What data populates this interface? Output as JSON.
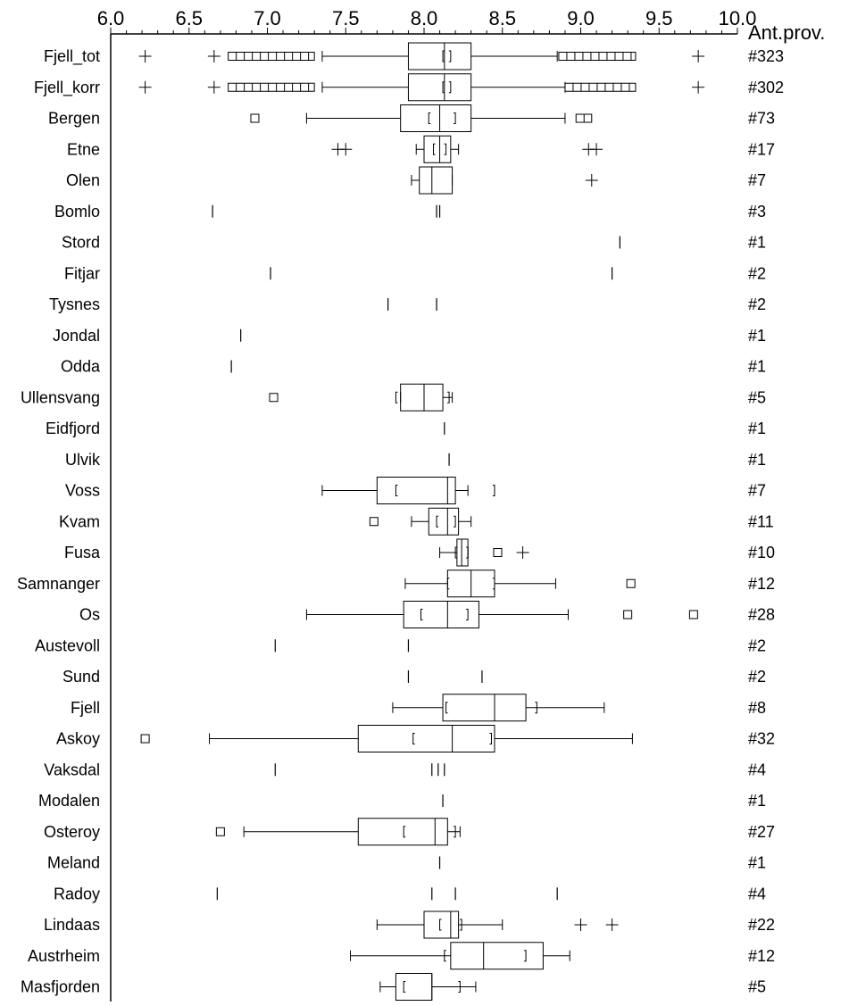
{
  "chart_data": {
    "type": "boxplot",
    "title": "",
    "xlabel": "",
    "ylabel": "",
    "xlim": [
      6.0,
      10.0
    ],
    "x_ticks": [
      "6.0",
      "6.5",
      "7.0",
      "7.5",
      "8.0",
      "8.5",
      "9.0",
      "9.5",
      "10.0"
    ],
    "count_header": "Ant.prov.",
    "rows": [
      {
        "label": "Fjell_tot",
        "count": "#323",
        "box": {
          "whisker_low": 7.35,
          "q1": 7.9,
          "median": 8.13,
          "q3": 8.3,
          "whisker_high": 8.85,
          "mean_ci": [
            8.12,
            8.17
          ]
        },
        "outliers": [
          {
            "x": 6.22,
            "kind": "plus"
          },
          {
            "x": 6.66,
            "kind": "plus"
          },
          {
            "x": 6.75,
            "kind": "run_square",
            "to": 7.3
          },
          {
            "x": 8.86,
            "kind": "run_square",
            "to": 9.35
          },
          {
            "x": 9.75,
            "kind": "plus"
          }
        ]
      },
      {
        "label": "Fjell_korr",
        "count": "#302",
        "box": {
          "whisker_low": 7.35,
          "q1": 7.9,
          "median": 8.13,
          "q3": 8.3,
          "whisker_high": 8.9,
          "mean_ci": [
            8.12,
            8.17
          ]
        },
        "outliers": [
          {
            "x": 6.22,
            "kind": "plus"
          },
          {
            "x": 6.66,
            "kind": "plus"
          },
          {
            "x": 6.75,
            "kind": "run_square",
            "to": 7.3
          },
          {
            "x": 8.9,
            "kind": "run_square",
            "to": 9.35
          },
          {
            "x": 9.75,
            "kind": "plus"
          }
        ]
      },
      {
        "label": "Bergen",
        "count": "#73",
        "box": {
          "whisker_low": 7.25,
          "q1": 7.85,
          "median": 8.1,
          "q3": 8.3,
          "whisker_high": 8.9,
          "mean_ci": [
            8.03,
            8.2
          ]
        },
        "outliers": [
          {
            "x": 6.92,
            "kind": "square"
          },
          {
            "x": 8.97,
            "kind": "run_square",
            "to": 9.07
          }
        ]
      },
      {
        "label": "Etne",
        "count": "#17",
        "box": {
          "whisker_low": 7.95,
          "q1": 8.0,
          "median": 8.1,
          "q3": 8.17,
          "whisker_high": 8.22,
          "mean_ci": [
            8.06,
            8.14
          ]
        },
        "outliers": [
          {
            "x": 7.45,
            "kind": "plus"
          },
          {
            "x": 7.5,
            "kind": "plus"
          },
          {
            "x": 9.05,
            "kind": "plus"
          },
          {
            "x": 9.1,
            "kind": "plus"
          }
        ]
      },
      {
        "label": "Olen",
        "count": "#7",
        "box": {
          "whisker_low": 7.92,
          "q1": 7.97,
          "median": 8.05,
          "q3": 8.18,
          "whisker_high": 8.18,
          "mean_ci": null
        },
        "outliers": [
          {
            "x": 9.07,
            "kind": "plus"
          }
        ]
      },
      {
        "label": "Bomlo",
        "count": "#3",
        "ticks": [
          6.65,
          8.08,
          8.1
        ]
      },
      {
        "label": "Stord",
        "count": "#1",
        "ticks": [
          9.25
        ]
      },
      {
        "label": "Fitjar",
        "count": "#2",
        "ticks": [
          7.02,
          9.2
        ]
      },
      {
        "label": "Tysnes",
        "count": "#2",
        "ticks": [
          7.77,
          8.08
        ]
      },
      {
        "label": "Jondal",
        "count": "#1",
        "ticks": [
          6.83
        ]
      },
      {
        "label": "Odda",
        "count": "#1",
        "ticks": [
          6.77
        ]
      },
      {
        "label": "Ullensvang",
        "count": "#5",
        "box": {
          "whisker_low": 7.85,
          "q1": 7.85,
          "median": 8.0,
          "q3": 8.12,
          "whisker_high": 8.18,
          "mean_ci": [
            7.82,
            8.16
          ]
        },
        "outliers": [
          {
            "x": 7.04,
            "kind": "square"
          }
        ]
      },
      {
        "label": "Eidfjord",
        "count": "#1",
        "ticks": [
          8.13
        ]
      },
      {
        "label": "Ulvik",
        "count": "#1",
        "ticks": [
          8.16
        ]
      },
      {
        "label": "Voss",
        "count": "#7",
        "box": {
          "whisker_low": 7.35,
          "q1": 7.7,
          "median": 8.15,
          "q3": 8.2,
          "whisker_high": 8.28,
          "mean_ci": [
            7.82,
            8.45
          ]
        },
        "outliers": []
      },
      {
        "label": "Kvam",
        "count": "#11",
        "box": {
          "whisker_low": 7.92,
          "q1": 8.03,
          "median": 8.15,
          "q3": 8.22,
          "whisker_high": 8.3,
          "mean_ci": [
            8.08,
            8.2
          ]
        },
        "outliers": [
          {
            "x": 7.68,
            "kind": "square"
          }
        ]
      },
      {
        "label": "Fusa",
        "count": "#10",
        "box": {
          "whisker_low": 8.1,
          "q1": 8.21,
          "median": 8.24,
          "q3": 8.28,
          "whisker_high": 8.28,
          "mean_ci": [
            8.2,
            8.28
          ]
        },
        "outliers": [
          {
            "x": 8.47,
            "kind": "square"
          },
          {
            "x": 8.63,
            "kind": "plus"
          }
        ]
      },
      {
        "label": "Samnanger",
        "count": "#12",
        "box": {
          "whisker_low": 7.88,
          "q1": 8.15,
          "median": 8.3,
          "q3": 8.45,
          "whisker_high": 8.84,
          "mean_ci": [
            8.15,
            8.45
          ]
        },
        "outliers": [
          {
            "x": 9.32,
            "kind": "square"
          }
        ]
      },
      {
        "label": "Os",
        "count": "#28",
        "box": {
          "whisker_low": 7.25,
          "q1": 7.87,
          "median": 8.15,
          "q3": 8.35,
          "whisker_high": 8.92,
          "mean_ci": [
            7.98,
            8.28
          ]
        },
        "outliers": [
          {
            "x": 9.3,
            "kind": "square"
          },
          {
            "x": 9.72,
            "kind": "square"
          }
        ]
      },
      {
        "label": "Austevoll",
        "count": "#2",
        "ticks": [
          7.05,
          7.9
        ]
      },
      {
        "label": "Sund",
        "count": "#2",
        "ticks": [
          7.9,
          8.37
        ]
      },
      {
        "label": "Fjell",
        "count": "#8",
        "box": {
          "whisker_low": 7.8,
          "q1": 8.12,
          "median": 8.45,
          "q3": 8.65,
          "whisker_high": 9.15,
          "mean_ci": [
            8.14,
            8.72
          ]
        },
        "outliers": []
      },
      {
        "label": "Askoy",
        "count": "#32",
        "box": {
          "whisker_low": 6.63,
          "q1": 7.58,
          "median": 8.18,
          "q3": 8.45,
          "whisker_high": 9.33,
          "mean_ci": [
            7.93,
            8.43
          ]
        },
        "outliers": [
          {
            "x": 6.22,
            "kind": "square"
          }
        ]
      },
      {
        "label": "Vaksdal",
        "count": "#4",
        "ticks": [
          7.05,
          8.05,
          8.09,
          8.13
        ]
      },
      {
        "label": "Modalen",
        "count": "#1",
        "ticks": [
          8.12
        ]
      },
      {
        "label": "Osteroy",
        "count": "#27",
        "box": {
          "whisker_low": 6.85,
          "q1": 7.58,
          "median": 8.07,
          "q3": 8.15,
          "whisker_high": 8.23,
          "mean_ci": [
            7.87,
            8.2
          ]
        },
        "outliers": [
          {
            "x": 6.7,
            "kind": "square"
          }
        ]
      },
      {
        "label": "Meland",
        "count": "#1",
        "ticks": [
          8.1
        ]
      },
      {
        "label": "Radoy",
        "count": "#4",
        "ticks": [
          6.68,
          8.05,
          8.2,
          8.85
        ]
      },
      {
        "label": "Lindaas",
        "count": "#22",
        "box": {
          "whisker_low": 7.7,
          "q1": 8.0,
          "median": 8.17,
          "q3": 8.22,
          "whisker_high": 8.5,
          "mean_ci": [
            8.1,
            8.24
          ]
        },
        "outliers": [
          {
            "x": 9.0,
            "kind": "plus"
          },
          {
            "x": 9.2,
            "kind": "plus"
          }
        ]
      },
      {
        "label": "Austrheim",
        "count": "#12",
        "box": {
          "whisker_low": 7.53,
          "q1": 8.17,
          "median": 8.38,
          "q3": 8.76,
          "whisker_high": 8.93,
          "mean_ci": [
            8.13,
            8.65
          ]
        },
        "outliers": []
      },
      {
        "label": "Masfjorden",
        "count": "#5",
        "box": {
          "whisker_low": 7.72,
          "q1": 7.82,
          "median": 8.05,
          "q3": 8.05,
          "whisker_high": 8.33,
          "mean_ci": [
            7.87,
            8.23
          ]
        },
        "outliers": []
      }
    ]
  }
}
